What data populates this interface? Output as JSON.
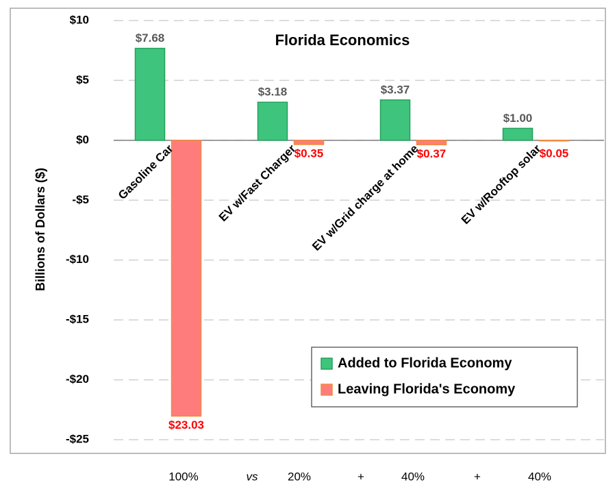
{
  "chart_data": {
    "type": "bar",
    "title": "Florida Economics",
    "y_label": "Billions of Dollars ($)",
    "categories": [
      "Gasoline Car",
      "EV w/Fast Charger",
      "EV w/Grid charge at home",
      "EV w/Rooftop solar"
    ],
    "series": [
      {
        "name": "Added to Florida Economy",
        "color": "#3fc47e",
        "values": [
          7.68,
          3.18,
          3.37,
          1.0
        ],
        "value_labels": [
          "$7.68",
          "$3.18",
          "$3.37",
          "$1.00"
        ]
      },
      {
        "name": "Leaving Florida's Economy",
        "color": "#ff7c7c",
        "values": [
          -23.03,
          -0.35,
          -0.37,
          -0.05
        ],
        "value_labels": [
          "$23.03",
          "$0.35",
          "$0.37",
          "$0.05"
        ]
      }
    ],
    "ylim": [
      -25,
      10
    ],
    "yticks": [
      {
        "value": -25,
        "label": "-$25"
      },
      {
        "value": -20,
        "label": "-$20"
      },
      {
        "value": -15,
        "label": "-$15"
      },
      {
        "value": -10,
        "label": "-$10"
      },
      {
        "value": -5,
        "label": "-$5"
      },
      {
        "value": 0,
        "label": "$0"
      },
      {
        "value": 5,
        "label": "$5"
      },
      {
        "value": 10,
        "label": "$10"
      }
    ],
    "grid": true,
    "legend": "lower right",
    "annotations": [
      "100%",
      "vs",
      "20%",
      "+",
      "40%",
      "+",
      "40%"
    ]
  }
}
